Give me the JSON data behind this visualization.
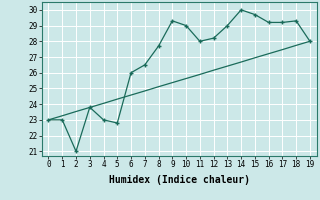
{
  "x": [
    0,
    1,
    2,
    3,
    4,
    5,
    6,
    7,
    8,
    9,
    10,
    11,
    12,
    13,
    14,
    15,
    16,
    17,
    18,
    19
  ],
  "y_curve": [
    23,
    23,
    21,
    23.8,
    23,
    22.8,
    26,
    26.5,
    27.7,
    29.3,
    29,
    28,
    28.2,
    29,
    30,
    29.7,
    29.2,
    29.2,
    29.3,
    28
  ],
  "y_line": [
    23,
    23.26,
    23.53,
    23.79,
    24.05,
    24.32,
    24.58,
    24.84,
    25.11,
    25.37,
    25.63,
    25.89,
    26.16,
    26.42,
    26.68,
    26.95,
    27.21,
    27.47,
    27.74,
    28.0
  ],
  "xlabel": "Humidex (Indice chaleur)",
  "ylim": [
    20.7,
    30.5
  ],
  "xlim": [
    -0.5,
    19.5
  ],
  "yticks": [
    21,
    22,
    23,
    24,
    25,
    26,
    27,
    28,
    29,
    30
  ],
  "xticks": [
    0,
    1,
    2,
    3,
    4,
    5,
    6,
    7,
    8,
    9,
    10,
    11,
    12,
    13,
    14,
    15,
    16,
    17,
    18,
    19
  ],
  "line_color": "#1a6b5a",
  "bg_color": "#cce8e8",
  "grid_color": "#b0d8d8",
  "tick_fontsize": 5.5,
  "xlabel_fontsize": 7
}
